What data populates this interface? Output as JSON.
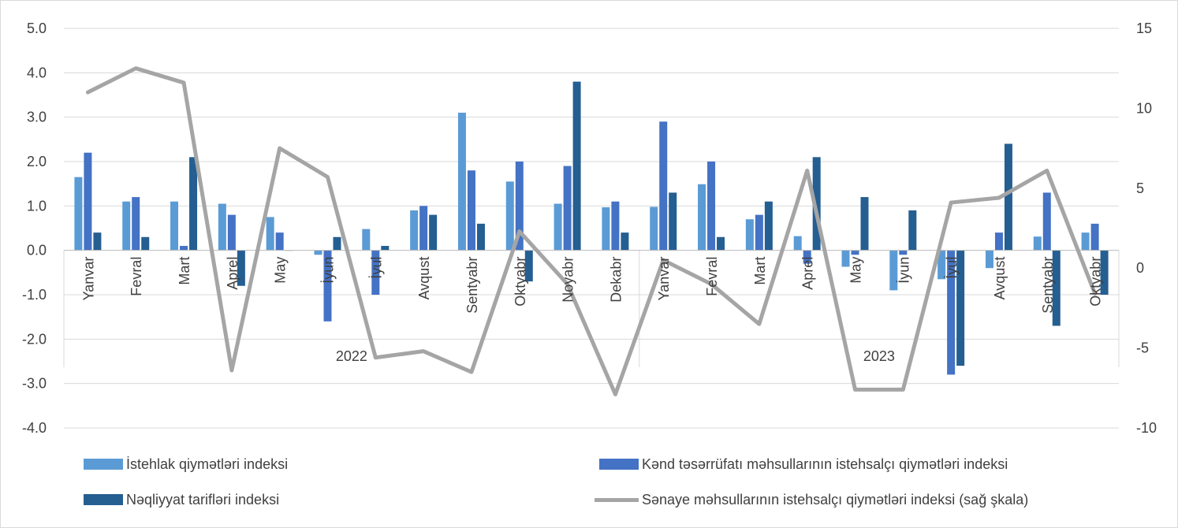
{
  "chart_data": {
    "type": "bar",
    "categories": [
      "Yanvar",
      "Fevral",
      "Mart",
      "Aprel",
      "May",
      "İyun",
      "İyul",
      "Avqust",
      "Sentyabr",
      "Oktyabr",
      "Noyabr",
      "Dekabr",
      "Yanvar",
      "Fevral",
      "Mart",
      "Aprel",
      "May",
      "İyun",
      "İyul",
      "Avqust",
      "Sentyabr",
      "Oktyabr"
    ],
    "groups": [
      {
        "label": "2022",
        "count": 12
      },
      {
        "label": "2023",
        "count": 10
      }
    ],
    "series": [
      {
        "name": "İstehlak qiymətləri indeksi",
        "type": "bar",
        "axis": "left",
        "color": "#5B9BD5",
        "values": [
          1.65,
          1.1,
          1.1,
          1.05,
          0.75,
          -0.1,
          0.48,
          0.9,
          3.1,
          1.55,
          1.05,
          0.97,
          0.98,
          1.49,
          0.7,
          0.32,
          -0.37,
          -0.9,
          -0.65,
          -0.4,
          0.31,
          0.4
        ]
      },
      {
        "name": "Kənd təsərrüfatı məhsullarının istehsalçı qiymətləri indeksi",
        "type": "bar",
        "axis": "left",
        "color": "#4472C4",
        "values": [
          2.2,
          1.2,
          0.1,
          0.8,
          0.4,
          -1.6,
          -1.0,
          1.0,
          1.8,
          2.0,
          1.9,
          1.1,
          2.9,
          2.0,
          0.8,
          -0.3,
          -0.1,
          -0.1,
          -2.8,
          0.4,
          1.3,
          0.6
        ]
      },
      {
        "name": "Nəqliyyat tarifləri indeksi",
        "type": "bar",
        "axis": "left",
        "color": "#255E91",
        "values": [
          0.4,
          0.3,
          2.1,
          -0.8,
          0.0,
          0.3,
          0.1,
          0.8,
          0.6,
          -0.7,
          3.8,
          0.4,
          1.3,
          0.3,
          1.1,
          2.1,
          1.2,
          0.9,
          -2.6,
          2.4,
          -1.7,
          -1.0
        ]
      },
      {
        "name": "Sənaye məhsullarının istehsalçı qiymətləri indeksi (sağ şkala)",
        "type": "line",
        "axis": "right",
        "color": "#A5A5A5",
        "values": [
          11.0,
          12.5,
          11.6,
          -6.4,
          7.5,
          5.7,
          -5.6,
          -5.2,
          -6.5,
          2.3,
          -1.0,
          -7.9,
          0.5,
          -1.0,
          -3.5,
          6.1,
          -7.6,
          -7.6,
          4.1,
          4.4,
          6.1,
          -1.6
        ]
      }
    ],
    "y_left": {
      "min": -4,
      "max": 5,
      "ticks": [
        "5.0",
        "4.0",
        "3.0",
        "2.0",
        "1.0",
        "0.0",
        "-1.0",
        "-2.0",
        "-3.0",
        "-4.0"
      ]
    },
    "y_right": {
      "min": -10,
      "max": 15,
      "ticks": [
        "15",
        "10",
        "5",
        "0",
        "-5",
        "-10"
      ]
    },
    "grid": true,
    "legend_position": "bottom"
  }
}
